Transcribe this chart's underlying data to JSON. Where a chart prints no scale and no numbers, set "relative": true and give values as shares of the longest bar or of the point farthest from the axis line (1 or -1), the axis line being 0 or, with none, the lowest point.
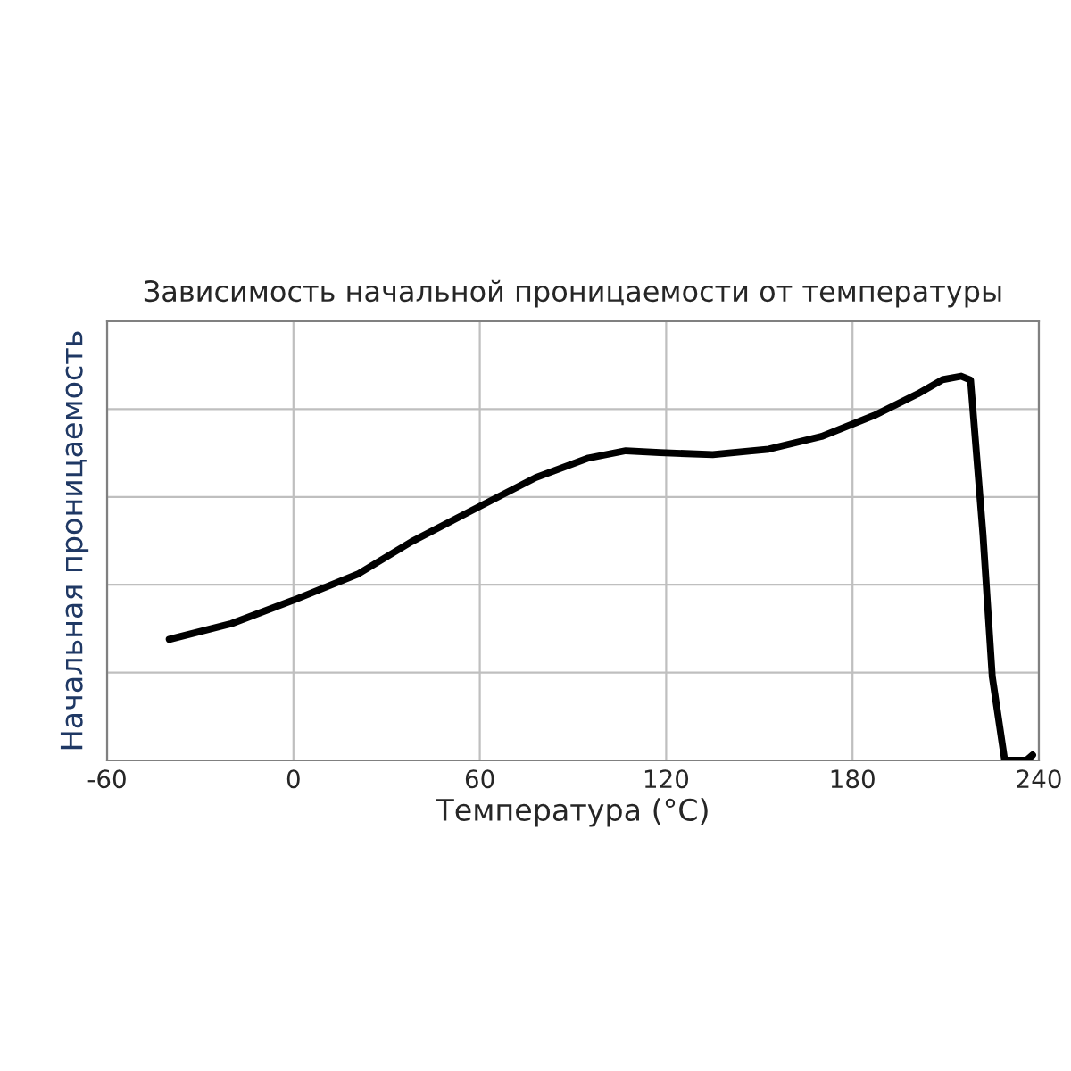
{
  "chart_data": {
    "type": "line",
    "title": "Зависимость начальной проницаемости от температуры",
    "xlabel": "Температура (°C)",
    "ylabel": "Начальная проницаемость",
    "relative": true,
    "grid": true,
    "legend": false,
    "marker": "none",
    "line_style": "solid",
    "xlim": [
      -60,
      240
    ],
    "xticks": [
      -60,
      0,
      60,
      120,
      180,
      240
    ],
    "series": [
      {
        "color": "#000000",
        "x": [
          -40,
          -20,
          0,
          21,
          38,
          59,
          78,
          95,
          107,
          118,
          135,
          153,
          170,
          187,
          201,
          209,
          215,
          218,
          222,
          225,
          229,
          236,
          238
        ],
        "values": [
          0.315,
          0.356,
          0.417,
          0.486,
          0.569,
          0.657,
          0.736,
          0.787,
          0.806,
          0.801,
          0.796,
          0.81,
          0.843,
          0.898,
          0.954,
          0.991,
          1.0,
          0.99,
          0.588,
          0.218,
          0,
          0,
          0.014
        ]
      }
    ]
  }
}
